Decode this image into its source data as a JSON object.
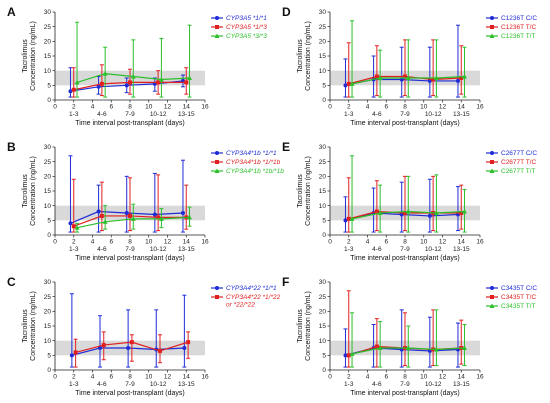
{
  "chart_data": [
    {
      "panel": "A",
      "type": "line",
      "categories": [
        "1-3",
        "4-6",
        "7-9",
        "10-12",
        "13-15"
      ],
      "xlabel": "Time interval post-transplant (days)",
      "ylabel": [
        "Tacrolimus",
        "Concentration (ng/mL)"
      ],
      "ylim": [
        0,
        30
      ],
      "yticks": [
        0,
        5,
        10,
        15,
        20,
        25,
        30
      ],
      "xlim": [
        0,
        16
      ],
      "xticks": [
        0,
        2,
        4,
        6,
        8,
        10,
        12,
        14,
        16
      ],
      "reference_band": [
        5,
        10
      ],
      "legend": "top-right",
      "series": [
        {
          "name": "CYP3A5 *1/*1",
          "color": "#1f2bd6",
          "marker": "circle",
          "mean": [
            3.0,
            4.5,
            5.0,
            5.5,
            6.5
          ],
          "upper": [
            11.0,
            8.0,
            7.5,
            7.5,
            8.5
          ],
          "lower": [
            1.0,
            2.0,
            2.5,
            3.0,
            4.5
          ]
        },
        {
          "name": "CYP3A5 *1/*3",
          "color": "#e02020",
          "marker": "square",
          "mean": [
            3.5,
            5.5,
            6.0,
            6.0,
            6.0
          ],
          "upper": [
            11.0,
            12.0,
            10.5,
            10.0,
            11.0
          ],
          "lower": [
            1.0,
            1.5,
            2.0,
            2.0,
            2.0
          ]
        },
        {
          "name": "CYP3A5 *3/*3",
          "color": "#2bbf2b",
          "marker": "triangle",
          "mean": [
            6.0,
            9.0,
            8.0,
            7.0,
            7.5
          ],
          "upper": [
            26.5,
            18.0,
            20.5,
            21.0,
            25.5
          ],
          "lower": [
            1.0,
            1.0,
            1.0,
            1.0,
            1.0
          ]
        }
      ]
    },
    {
      "panel": "B",
      "type": "line",
      "categories": [
        "1-3",
        "4-6",
        "7-9",
        "10-12",
        "13-15"
      ],
      "xlabel": "Time interval post-transplant (days)",
      "ylabel": [
        "Tacrolimus",
        "Concentration (ng/mL)"
      ],
      "ylim": [
        0,
        30
      ],
      "yticks": [
        0,
        5,
        10,
        15,
        20,
        25,
        30
      ],
      "xlim": [
        0,
        16
      ],
      "xticks": [
        0,
        2,
        4,
        6,
        8,
        10,
        12,
        14,
        16
      ],
      "reference_band": [
        5,
        10
      ],
      "legend": "top-right",
      "series": [
        {
          "name": "CYP3A4*1b *1/*1",
          "color": "#1f2bd6",
          "marker": "circle",
          "mean": [
            4.0,
            8.0,
            7.5,
            7.0,
            7.5
          ],
          "upper": [
            27.0,
            17.0,
            20.0,
            21.0,
            25.5
          ],
          "lower": [
            1.0,
            1.0,
            1.0,
            1.0,
            1.0
          ]
        },
        {
          "name": "CYP3A4*1b *1/*1b",
          "color": "#e02020",
          "marker": "square",
          "mean": [
            3.0,
            6.5,
            6.5,
            6.0,
            6.0
          ],
          "upper": [
            19.0,
            18.0,
            19.5,
            20.5,
            17.0
          ],
          "lower": [
            1.0,
            1.5,
            1.5,
            1.5,
            2.0
          ]
        },
        {
          "name": "CYP3A4*1b *1b/*1b",
          "color": "#2bbf2b",
          "marker": "triangle",
          "mean": [
            2.5,
            4.5,
            5.5,
            5.5,
            6.0
          ],
          "upper": [
            4.0,
            10.0,
            10.5,
            9.0,
            9.5
          ],
          "lower": [
            1.0,
            2.0,
            2.0,
            2.5,
            3.0
          ]
        }
      ]
    },
    {
      "panel": "C",
      "type": "line",
      "categories": [
        "1-3",
        "4-6",
        "7-9",
        "10-12",
        "13-15"
      ],
      "xlabel": "Time interval post-transplant (days)",
      "ylabel": [
        "Tacrolimus",
        "Concentration (ng/mL)"
      ],
      "ylim": [
        0,
        30
      ],
      "yticks": [
        0,
        5,
        10,
        15,
        20,
        25,
        30
      ],
      "xlim": [
        0,
        16
      ],
      "xticks": [
        0,
        2,
        4,
        6,
        8,
        10,
        12,
        14,
        16
      ],
      "reference_band": [
        5,
        10
      ],
      "legend": "top-right",
      "series": [
        {
          "name": "CYP3A4*22 *1/*1",
          "color": "#1f2bd6",
          "marker": "circle",
          "mean": [
            5.0,
            7.5,
            7.5,
            7.0,
            7.5
          ],
          "upper": [
            26.0,
            18.5,
            20.5,
            20.5,
            25.5
          ],
          "lower": [
            1.0,
            1.0,
            1.0,
            1.0,
            1.0
          ]
        },
        {
          "name": "CYP3A4*22 *1/*22 or *22/*22",
          "color": "#e02020",
          "marker": "square",
          "mean": [
            6.0,
            8.5,
            9.5,
            6.5,
            9.5
          ],
          "upper": [
            10.5,
            13.0,
            12.0,
            12.0,
            13.0
          ],
          "lower": [
            1.0,
            3.5,
            3.0,
            2.5,
            4.0
          ]
        }
      ]
    },
    {
      "panel": "D",
      "type": "line",
      "categories": [
        "1-3",
        "4-6",
        "7-9",
        "10-12",
        "13-15"
      ],
      "xlabel": "Time interval post-transplant (days)",
      "ylabel": [
        "Tacrolimus",
        "Concentration (ng/mL)"
      ],
      "ylim": [
        0,
        30
      ],
      "yticks": [
        0,
        5,
        10,
        15,
        20,
        25,
        30
      ],
      "xlim": [
        0,
        16
      ],
      "xticks": [
        0,
        2,
        4,
        6,
        8,
        10,
        12,
        14,
        16
      ],
      "reference_band": [
        5,
        10
      ],
      "legend": "top-right",
      "series": [
        {
          "name": "C1236T C/C",
          "color": "#1f2bd6",
          "marker": "circle",
          "mean": [
            5.0,
            7.0,
            7.0,
            6.5,
            6.5
          ],
          "upper": [
            14.0,
            15.0,
            18.0,
            18.0,
            25.5
          ],
          "lower": [
            1.0,
            1.0,
            1.0,
            1.0,
            1.0
          ]
        },
        {
          "name": "C1236T T/C",
          "color": "#e02020",
          "marker": "square",
          "mean": [
            5.5,
            8.0,
            8.0,
            7.0,
            7.5
          ],
          "upper": [
            19.5,
            18.5,
            20.5,
            20.5,
            18.5
          ],
          "lower": [
            1.0,
            1.5,
            1.5,
            1.5,
            2.0
          ]
        },
        {
          "name": "C1236T T/T",
          "color": "#2bbf2b",
          "marker": "triangle",
          "mean": [
            5.5,
            7.5,
            7.5,
            7.5,
            8.0
          ],
          "upper": [
            27.0,
            17.0,
            20.5,
            20.5,
            18.0
          ],
          "lower": [
            1.0,
            1.0,
            1.0,
            1.0,
            1.0
          ]
        }
      ]
    },
    {
      "panel": "E",
      "type": "line",
      "categories": [
        "1-3",
        "4-6",
        "7-9",
        "10-12",
        "13-15"
      ],
      "xlabel": "Time interval post-transplant (days)",
      "ylabel": [
        "Tacrolimus",
        "Concentration (ng/mL)"
      ],
      "ylim": [
        0,
        30
      ],
      "yticks": [
        0,
        5,
        10,
        15,
        20,
        25,
        30
      ],
      "xlim": [
        0,
        16
      ],
      "xticks": [
        0,
        2,
        4,
        6,
        8,
        10,
        12,
        14,
        16
      ],
      "reference_band": [
        5,
        10
      ],
      "legend": "top-right",
      "series": [
        {
          "name": "C2677T C/C",
          "color": "#1f2bd6",
          "marker": "circle",
          "mean": [
            5.0,
            7.5,
            7.0,
            6.5,
            7.0
          ],
          "upper": [
            13.0,
            16.0,
            18.0,
            19.0,
            16.5
          ],
          "lower": [
            1.0,
            1.0,
            1.0,
            1.0,
            1.5
          ]
        },
        {
          "name": "C2677T T/C",
          "color": "#e02020",
          "marker": "square",
          "mean": [
            5.5,
            8.0,
            7.5,
            7.5,
            7.5
          ],
          "upper": [
            19.5,
            18.5,
            20.0,
            20.0,
            17.0
          ],
          "lower": [
            1.0,
            1.5,
            1.5,
            1.5,
            2.0
          ]
        },
        {
          "name": "C2677T T/T",
          "color": "#2bbf2b",
          "marker": "triangle",
          "mean": [
            5.5,
            7.5,
            8.0,
            7.5,
            8.0
          ],
          "upper": [
            27.0,
            17.0,
            20.0,
            20.5,
            15.5
          ],
          "lower": [
            1.0,
            1.0,
            1.0,
            1.0,
            1.0
          ]
        }
      ]
    },
    {
      "panel": "F",
      "type": "line",
      "categories": [
        "1-3",
        "4-6",
        "7-9",
        "10-12",
        "13-15"
      ],
      "xlabel": "Time interval post-transplant (days)",
      "ylabel": [
        "Tacrolimus",
        "Concentration (ng/mL)"
      ],
      "ylim": [
        0,
        30
      ],
      "yticks": [
        0,
        5,
        10,
        15,
        20,
        25,
        30
      ],
      "xlim": [
        0,
        16
      ],
      "xticks": [
        0,
        2,
        4,
        6,
        8,
        10,
        12,
        14,
        16
      ],
      "reference_band": [
        5,
        10
      ],
      "legend": "top-right",
      "series": [
        {
          "name": "C3435T C/C",
          "color": "#1f2bd6",
          "marker": "circle",
          "mean": [
            5.0,
            7.5,
            7.0,
            6.5,
            7.0
          ],
          "upper": [
            14.0,
            15.5,
            20.5,
            18.0,
            16.0
          ],
          "lower": [
            1.0,
            1.0,
            1.0,
            1.0,
            1.0
          ]
        },
        {
          "name": "C3435T T/C",
          "color": "#e02020",
          "marker": "square",
          "mean": [
            5.0,
            8.0,
            7.5,
            7.0,
            7.5
          ],
          "upper": [
            27.0,
            17.5,
            19.5,
            20.5,
            17.0
          ],
          "lower": [
            1.0,
            1.0,
            1.5,
            1.5,
            2.0
          ]
        },
        {
          "name": "C3435T T/T",
          "color": "#2bbf2b",
          "marker": "triangle",
          "mean": [
            5.5,
            7.5,
            7.5,
            7.0,
            7.5
          ],
          "upper": [
            19.5,
            16.5,
            15.0,
            20.5,
            15.5
          ],
          "lower": [
            1.0,
            1.0,
            1.0,
            1.5,
            1.5
          ]
        }
      ]
    }
  ]
}
